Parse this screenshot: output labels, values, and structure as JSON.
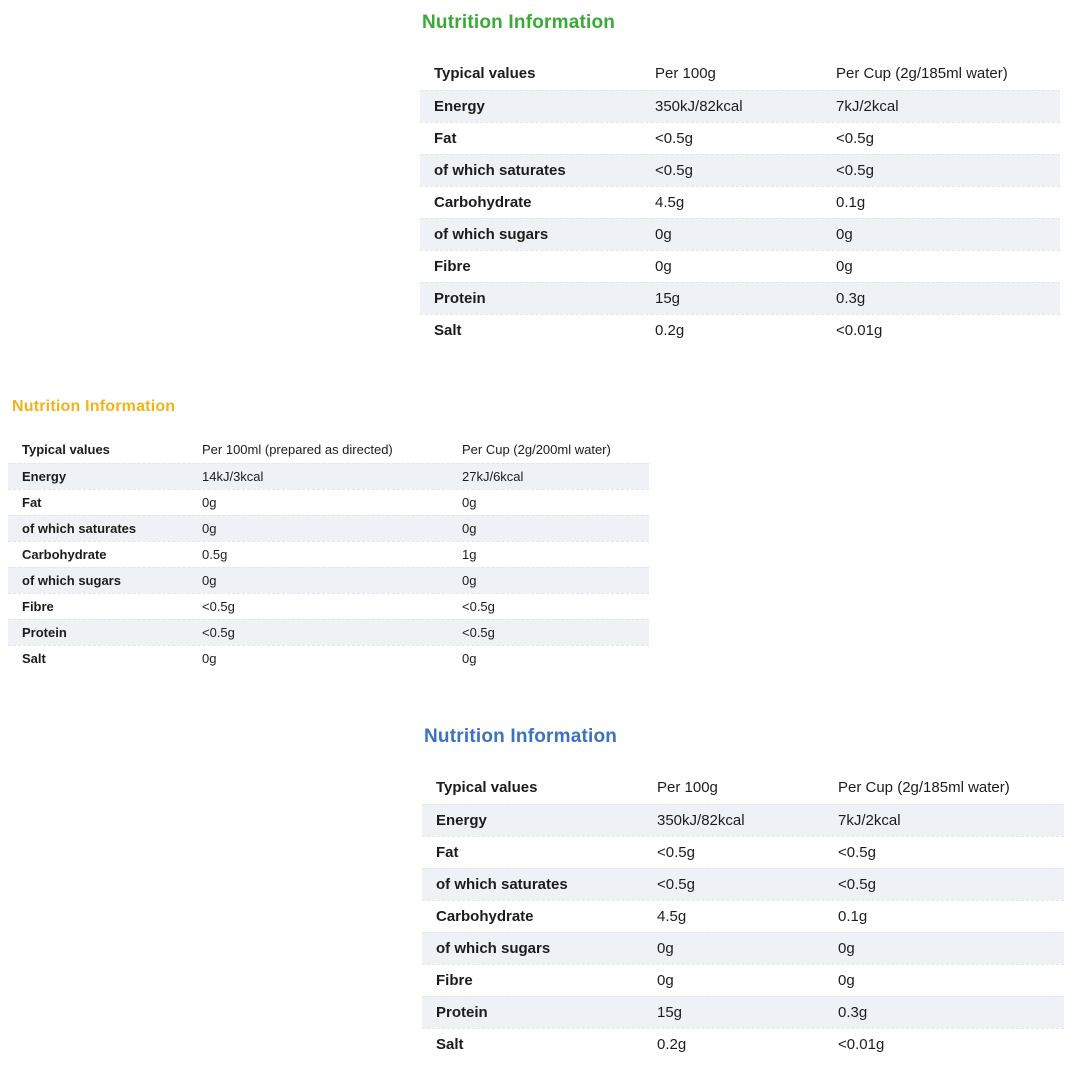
{
  "page": {
    "background": "#ffffff",
    "text_color": "#1c1c1c",
    "stripe_color": "#eef2f7"
  },
  "tables": [
    {
      "title": "Nutrition Information",
      "title_color": "#3aaa36",
      "columns": [
        "Typical values",
        "Per 100g",
        "Per Cup (2g/185ml water)"
      ],
      "rows": [
        {
          "label": "Energy",
          "per100": "350kJ/82kcal",
          "percup": "7kJ/2kcal"
        },
        {
          "label": "Fat",
          "per100": "<0.5g",
          "percup": "<0.5g"
        },
        {
          "label": "of which saturates",
          "per100": "<0.5g",
          "percup": "<0.5g"
        },
        {
          "label": "Carbohydrate",
          "per100": "4.5g",
          "percup": "0.1g"
        },
        {
          "label": "of which sugars",
          "per100": "0g",
          "percup": "0g"
        },
        {
          "label": "Fibre",
          "per100": "0g",
          "percup": "0g"
        },
        {
          "label": "Protein",
          "per100": "15g",
          "percup": "0.3g"
        },
        {
          "label": "Salt",
          "per100": "0.2g",
          "percup": "<0.01g"
        }
      ]
    },
    {
      "title": "Nutrition Information",
      "title_color": "#f0b31d",
      "columns": [
        "Typical values",
        "Per 100ml (prepared as directed)",
        "Per Cup (2g/200ml water)"
      ],
      "rows": [
        {
          "label": "Energy",
          "per100": "14kJ/3kcal",
          "percup": "27kJ/6kcal"
        },
        {
          "label": "Fat",
          "per100": "0g",
          "percup": "0g"
        },
        {
          "label": "of which saturates",
          "per100": "0g",
          "percup": "0g"
        },
        {
          "label": "Carbohydrate",
          "per100": "0.5g",
          "percup": "1g"
        },
        {
          "label": "of which sugars",
          "per100": "0g",
          "percup": "0g"
        },
        {
          "label": "Fibre",
          "per100": "<0.5g",
          "percup": "<0.5g"
        },
        {
          "label": "Protein",
          "per100": "<0.5g",
          "percup": "<0.5g"
        },
        {
          "label": "Salt",
          "per100": "0g",
          "percup": "0g"
        }
      ]
    },
    {
      "title": "Nutrition Information",
      "title_color": "#3b72c1",
      "columns": [
        "Typical values",
        "Per 100g",
        "Per Cup (2g/185ml water)"
      ],
      "rows": [
        {
          "label": "Energy",
          "per100": "350kJ/82kcal",
          "percup": "7kJ/2kcal"
        },
        {
          "label": "Fat",
          "per100": "<0.5g",
          "percup": "<0.5g"
        },
        {
          "label": "of which saturates",
          "per100": "<0.5g",
          "percup": "<0.5g"
        },
        {
          "label": "Carbohydrate",
          "per100": "4.5g",
          "percup": "0.1g"
        },
        {
          "label": "of which sugars",
          "per100": "0g",
          "percup": "0g"
        },
        {
          "label": "Fibre",
          "per100": "0g",
          "percup": "0g"
        },
        {
          "label": "Protein",
          "per100": "15g",
          "percup": "0.3g"
        },
        {
          "label": "Salt",
          "per100": "0.2g",
          "percup": "<0.01g"
        }
      ]
    }
  ]
}
